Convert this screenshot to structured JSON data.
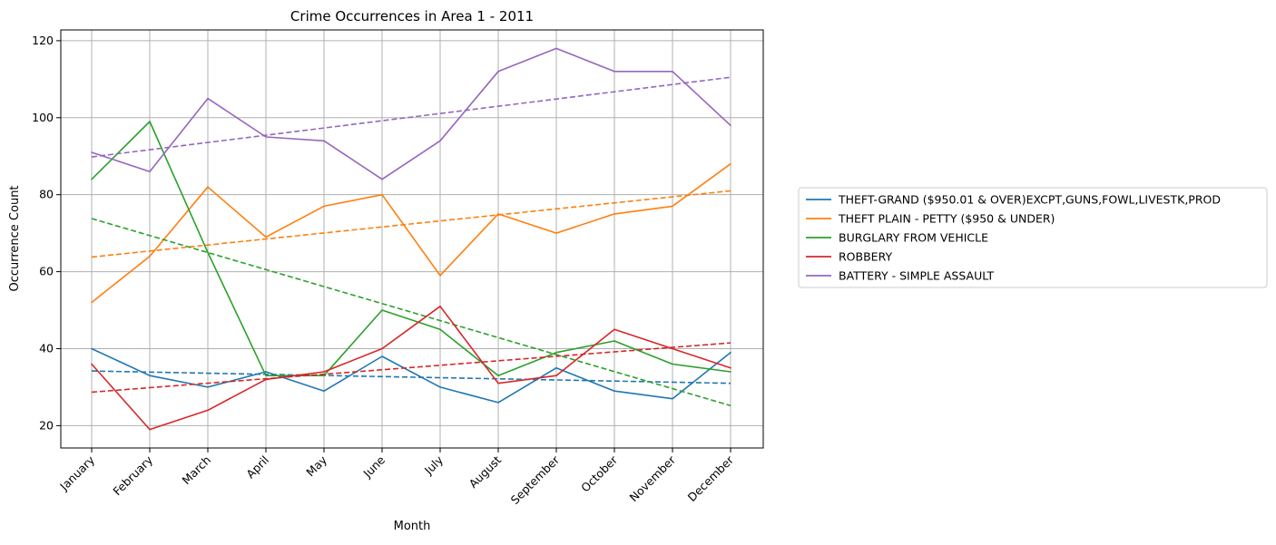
{
  "chart_data": {
    "type": "line",
    "title": "Crime Occurrences in Area 1 - 2011",
    "xlabel": "Month",
    "ylabel": "Occurrence Count",
    "categories": [
      "January",
      "February",
      "March",
      "April",
      "May",
      "June",
      "July",
      "August",
      "September",
      "October",
      "November",
      "December"
    ],
    "ylim": [
      14.2,
      122.8
    ],
    "yticks": [
      20,
      40,
      60,
      80,
      100,
      120
    ],
    "grid": true,
    "legend_position": "right",
    "series": [
      {
        "name": "THEFT-GRAND ($950.01 & OVER)EXCPT,GUNS,FOWL,LIVESTK,PROD",
        "color": "#1f77b4",
        "values": [
          40,
          33,
          30,
          34,
          29,
          38,
          30,
          26,
          35,
          29,
          27,
          39
        ],
        "trend": [
          34.2,
          31.0
        ]
      },
      {
        "name": "THEFT PLAIN - PETTY ($950 & UNDER)",
        "color": "#ff7f0e",
        "values": [
          52,
          64,
          82,
          69,
          77,
          80,
          59,
          75,
          70,
          75,
          77,
          88
        ],
        "trend": [
          63.8,
          81.0
        ]
      },
      {
        "name": "BURGLARY FROM VEHICLE",
        "color": "#2ca02c",
        "values": [
          84,
          99,
          65,
          33,
          33,
          50,
          45,
          33,
          39,
          42,
          36,
          34
        ],
        "trend": [
          73.8,
          25.2
        ]
      },
      {
        "name": "ROBBERY",
        "color": "#d62728",
        "values": [
          36,
          19,
          24,
          32,
          34,
          40,
          51,
          31,
          33,
          45,
          40,
          35
        ],
        "trend": [
          28.7,
          41.5
        ]
      },
      {
        "name": "BATTERY - SIMPLE ASSAULT",
        "color": "#9467bd",
        "values": [
          91,
          86,
          105,
          95,
          94,
          84,
          94,
          112,
          118,
          112,
          112,
          98
        ],
        "trend": [
          89.8,
          110.5
        ]
      }
    ]
  }
}
